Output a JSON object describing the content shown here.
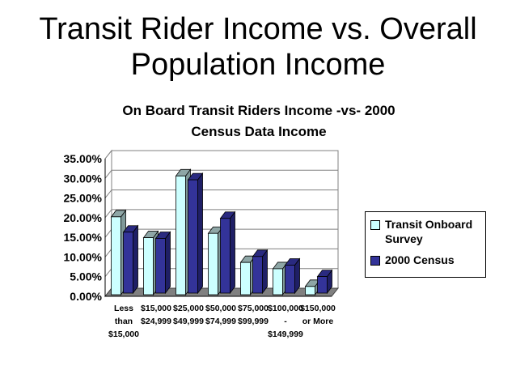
{
  "slide": {
    "title_line1": "Transit Rider Income vs. Overall",
    "title_line2": "Population Income"
  },
  "chart_data": {
    "type": "bar",
    "title_line1": "On Board Transit Riders Income -vs- 2000",
    "title_line2": "Census Data Income",
    "categories": [
      [
        "Less",
        "than",
        "$15,000"
      ],
      [
        "$15,000",
        "$24,999"
      ],
      [
        "$25,000",
        "$49,999"
      ],
      [
        "$50,000",
        "$74,999"
      ],
      [
        "$75,000",
        "$99,999"
      ],
      [
        "$100,000",
        "-",
        "$149,999"
      ],
      [
        "$150,000",
        "or More"
      ]
    ],
    "series": [
      {
        "name": "Transit Onboard Survey",
        "color": "#CCFFFF",
        "top_color": "#8EA6A6",
        "side_color": "#7F9999",
        "values": [
          19.8,
          14.5,
          30.2,
          15.6,
          8.2,
          6.6,
          2.1
        ]
      },
      {
        "name": "2000 Census",
        "color": "#333399",
        "top_color": "#2A2A80",
        "side_color": "#1F1F66",
        "values": [
          15.5,
          13.9,
          28.8,
          19.0,
          9.3,
          7.1,
          4.2
        ]
      }
    ],
    "y_ticks": [
      "0.00%",
      "5.00%",
      "10.00%",
      "15.00%",
      "20.00%",
      "25.00%",
      "30.00%",
      "35.00%"
    ],
    "ylim": [
      0,
      35
    ],
    "grid": true,
    "legend_position": "right"
  }
}
